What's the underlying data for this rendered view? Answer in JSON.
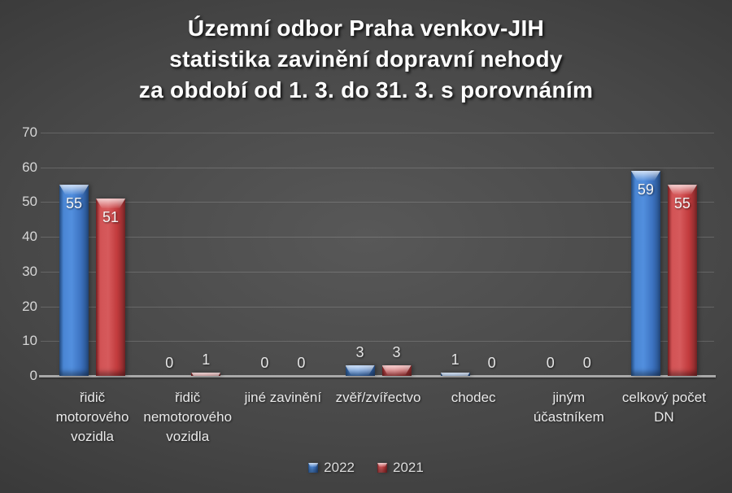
{
  "title": {
    "lines": [
      "Územní odbor Praha venkov-JIH",
      "statistika zavinění dopravní nehody",
      "za období od 1. 3. do 31. 3. s porovnáním"
    ]
  },
  "chart_data": {
    "type": "bar",
    "title": "Územní odbor Praha venkov-JIH statistika zavinění dopravní nehody za období od 1. 3. do 31. 3. s porovnáním",
    "categories": [
      "řidič motorového vozidla",
      "řidič nemotorového vozidla",
      "jiné zavinění",
      "zvěř/zvířectvo",
      "chodec",
      "jiným účastníkem",
      "celkový počet DN"
    ],
    "series": [
      {
        "name": "2022",
        "color": "#3d74c2",
        "values": [
          55,
          0,
          0,
          3,
          1,
          0,
          59
        ]
      },
      {
        "name": "2021",
        "color": "#c23b3d",
        "values": [
          51,
          1,
          0,
          3,
          0,
          0,
          55
        ]
      }
    ],
    "xlabel": "",
    "ylabel": "",
    "ylim": [
      0,
      70
    ],
    "yticks": [
      0,
      10,
      20,
      30,
      40,
      50,
      60,
      70
    ],
    "grid": true,
    "value_labels": true,
    "legend_position": "bottom"
  },
  "colors": {
    "background_center": "#585858",
    "background_edge": "#1d1d1d",
    "grid_line": "#6a6a6a",
    "axis_line": "#a8a8a8",
    "tick_label": "#d6d6d6",
    "category_label": "#eaeaea",
    "data_label": "#efefef",
    "title_text": "#ffffff",
    "series_2022": "#3d74c2",
    "series_2021": "#c23b3d"
  }
}
